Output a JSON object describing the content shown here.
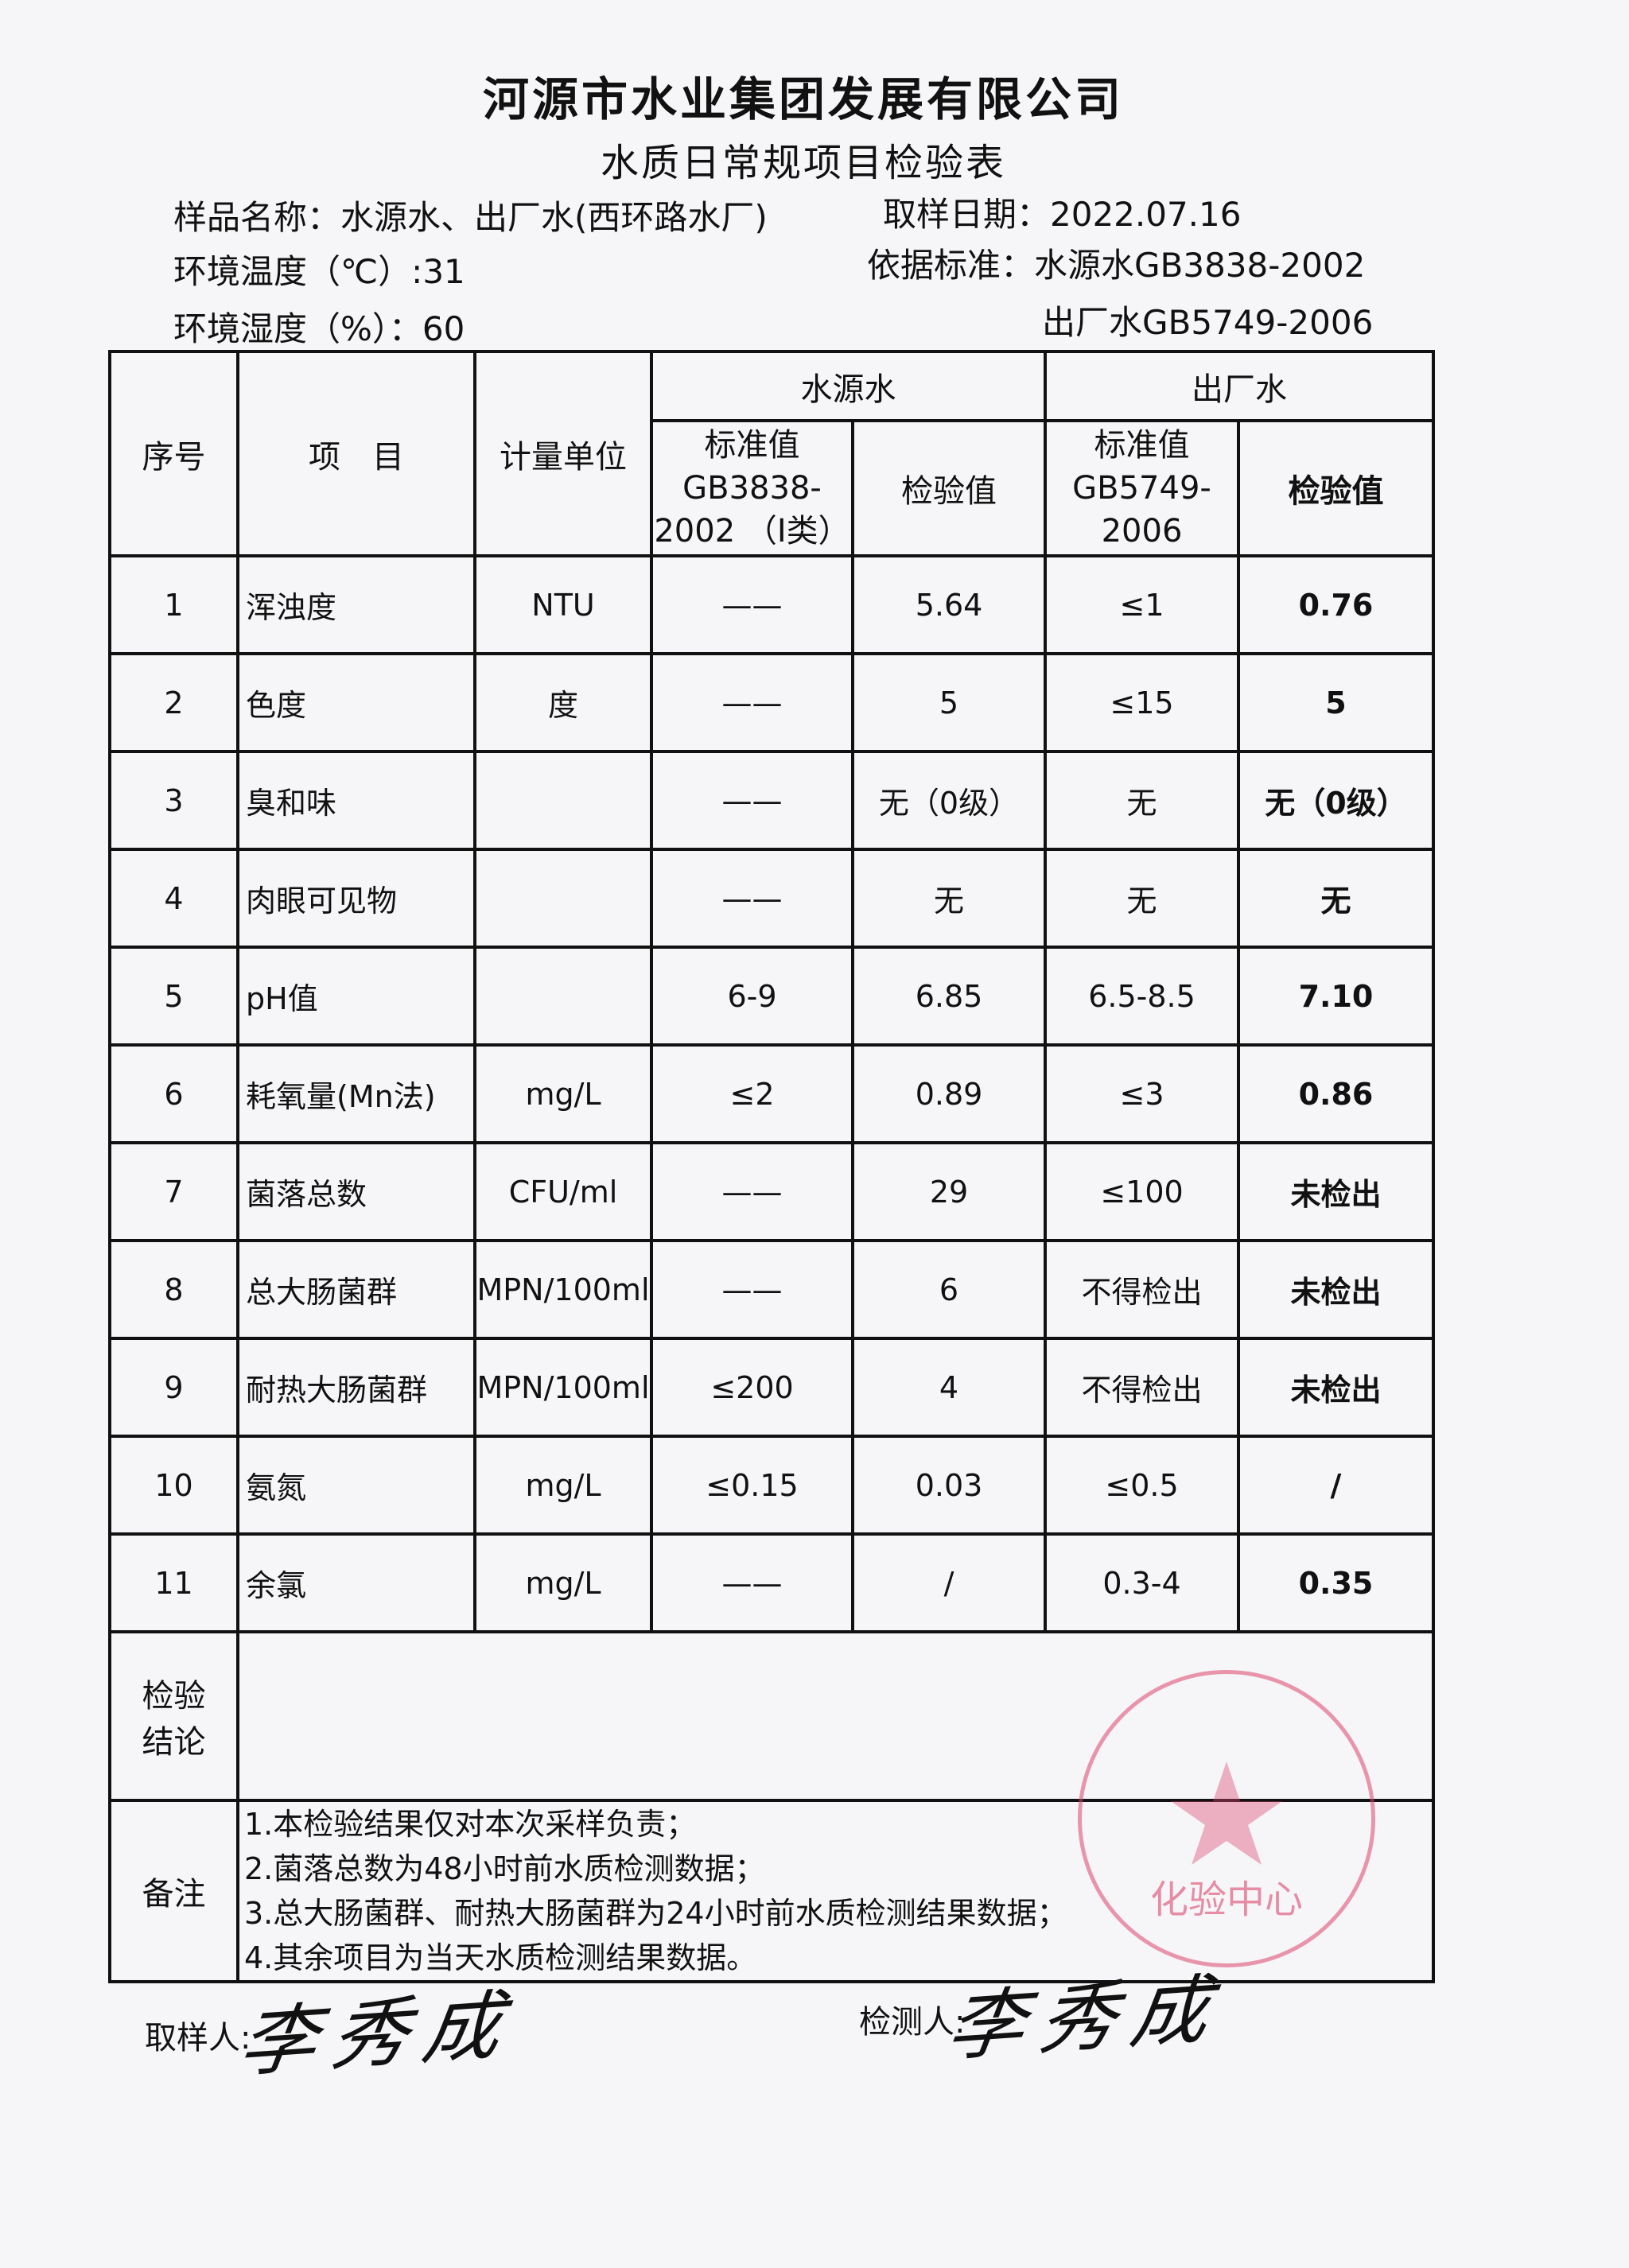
{
  "header": {
    "company": "河源市水业集团发展有限公司",
    "form_title": "水质日常规项目检验表",
    "sample_name": "样品名称：水源水、出厂水(西环路水厂)",
    "sample_date": "取样日期：2022.07.16",
    "temperature": "环境温度（℃）:31",
    "humidity": "环境湿度（%）：60",
    "standard_line1": "依据标准：水源水GB3838-2002",
    "standard_line2": "出厂水GB5749-2006"
  },
  "table": {
    "col_no": "序号",
    "col_item": "项　目",
    "col_unit": "计量单位",
    "group_source": "水源水",
    "group_plant": "出厂水",
    "source_std": "标准值 GB3838-2002 （Ⅰ类）",
    "source_val": "检验值",
    "plant_std": "标准值 GB5749-2006",
    "plant_val": "检验值",
    "rows": [
      {
        "no": "1",
        "item": "浑浊度",
        "unit": "NTU",
        "s_std": "——",
        "s_val": "5.64",
        "p_std": "≤1",
        "p_val": "0.76"
      },
      {
        "no": "2",
        "item": "色度",
        "unit": "度",
        "s_std": "——",
        "s_val": "5",
        "p_std": "≤15",
        "p_val": "5"
      },
      {
        "no": "3",
        "item": "臭和味",
        "unit": "",
        "s_std": "——",
        "s_val": "无（0级）",
        "p_std": "无",
        "p_val": "无（0级）"
      },
      {
        "no": "4",
        "item": "肉眼可见物",
        "unit": "",
        "s_std": "——",
        "s_val": "无",
        "p_std": "无",
        "p_val": "无"
      },
      {
        "no": "5",
        "item": "pH值",
        "unit": "",
        "s_std": "6-9",
        "s_val": "6.85",
        "p_std": "6.5-8.5",
        "p_val": "7.10"
      },
      {
        "no": "6",
        "item": "耗氧量(Mn法)",
        "unit": "mg/L",
        "s_std": "≤2",
        "s_val": "0.89",
        "p_std": "≤3",
        "p_val": "0.86"
      },
      {
        "no": "7",
        "item": "菌落总数",
        "unit": "CFU/ml",
        "s_std": "——",
        "s_val": "29",
        "p_std": "≤100",
        "p_val": "未检出"
      },
      {
        "no": "8",
        "item": "总大肠菌群",
        "unit": "MPN/100ml",
        "s_std": "——",
        "s_val": "6",
        "p_std": "不得检出",
        "p_val": "未检出"
      },
      {
        "no": "9",
        "item": "耐热大肠菌群",
        "unit": "MPN/100ml",
        "s_std": "≤200",
        "s_val": "4",
        "p_std": "不得检出",
        "p_val": "未检出"
      },
      {
        "no": "10",
        "item": "氨氮",
        "unit": "mg/L",
        "s_std": "≤0.15",
        "s_val": "0.03",
        "p_std": "≤0.5",
        "p_val": "/"
      },
      {
        "no": "11",
        "item": "余氯",
        "unit": "mg/L",
        "s_std": "——",
        "s_val": "/",
        "p_std": "0.3-4",
        "p_val": "0.35"
      }
    ],
    "conclusion_label": "检验结论",
    "remarks_label": "备注",
    "remarks": [
      "1.本检验结果仅对本次采样负责；",
      "2.菌落总数为48小时前水质检测数据；",
      "3.总大肠菌群、耐热大肠菌群为24小时前水质检测结果数据；",
      "4.其余项目为当天水质检测结果数据。"
    ]
  },
  "signatures": {
    "sampler_label": "取样人:",
    "tester_label": "检测人:",
    "sampler_signature": "李秀成",
    "tester_signature": "李秀成"
  },
  "stamp": {
    "text": "河源市水业集团发展有限公司 化验中心",
    "color": "#dc466e"
  }
}
